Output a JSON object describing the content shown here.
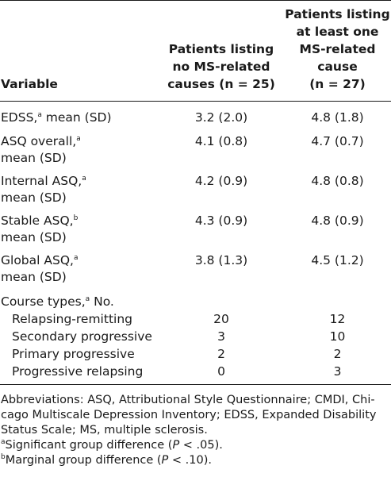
{
  "table": {
    "header": {
      "variable": "Variable",
      "col2_lines": [
        "Patients listing",
        "no MS-related",
        "causes (n = 25)"
      ],
      "col3_lines": [
        "Patients listing",
        "at least one",
        "MS-related",
        "cause",
        "(n = 27)"
      ]
    },
    "rows": [
      {
        "label_lines": [
          "EDSS,",
          " mean (SD)"
        ],
        "sup": "a",
        "v1": "3.2 (2.0)",
        "v2": "4.8 (1.8)"
      },
      {
        "label_lines": [
          "ASQ overall,",
          "mean (SD)"
        ],
        "sup": "a",
        "v1": "4.1 (0.8)",
        "v2": "4.7 (0.7)"
      },
      {
        "label_lines": [
          "Internal ASQ,",
          "mean (SD)"
        ],
        "sup": "a",
        "v1": "4.2 (0.9)",
        "v2": "4.8 (0.8)"
      },
      {
        "label_lines": [
          "Stable ASQ,",
          "mean (SD)"
        ],
        "sup": "b",
        "v1": "4.3 (0.9)",
        "v2": "4.8 (0.9)"
      },
      {
        "label_lines": [
          "Global ASQ,",
          "mean (SD)"
        ],
        "sup": "a",
        "v1": "3.8 (1.3)",
        "v2": "4.5 (1.2)"
      }
    ],
    "course": {
      "label": "Course types,",
      "sup": "a",
      "label_suffix": " No.",
      "items": [
        {
          "label": "Relapsing-remitting",
          "v1": "20",
          "v2": "12"
        },
        {
          "label": "Secondary progressive",
          "v1": "3",
          "v2": "10"
        },
        {
          "label": "Primary progressive",
          "v1": "2",
          "v2": "2"
        },
        {
          "label": "Progressive relapsing",
          "v1": "0",
          "v2": "3"
        }
      ]
    }
  },
  "footnotes": {
    "abbreviations_lines": [
      "Abbreviations: ASQ, Attributional Style Questionnaire; CMDI, Chi-",
      "cago Multiscale Depression Inventory; EDSS, Expanded Disability",
      "Status Scale; MS, multiple sclerosis."
    ],
    "a_sup": "a",
    "a_text_pre": "Significant group difference (",
    "a_p": "P",
    "a_text_post": " < .05).",
    "b_sup": "b",
    "b_text_pre": "Marginal group difference (",
    "b_p": "P",
    "b_text_post": " < .10)."
  }
}
